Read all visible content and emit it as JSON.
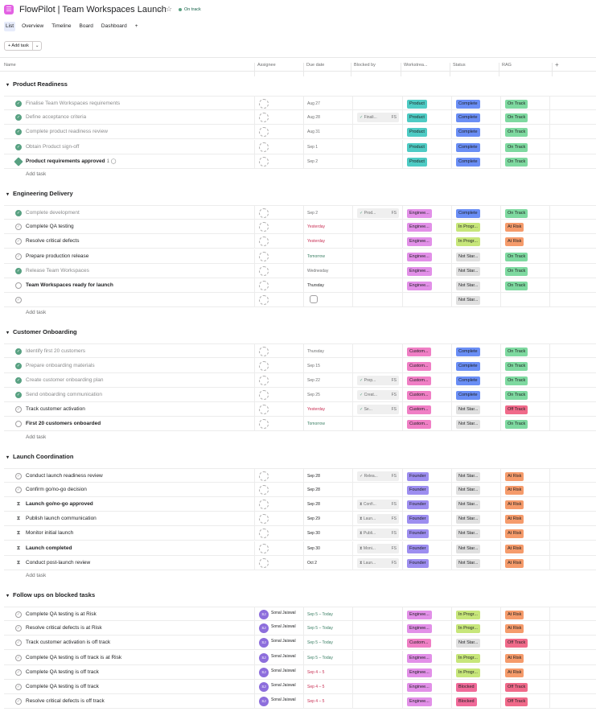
{
  "header": {
    "title": "FlowPilot | Team Workspaces Launch",
    "status": "On track"
  },
  "tabs": [
    "List",
    "Overview",
    "Timeline",
    "Board",
    "Dashboard",
    "+"
  ],
  "toolbar": {
    "add_task": "+ Add task",
    "caret": "⌄"
  },
  "columns": [
    "Name",
    "Assignee",
    "Due date",
    "Blocked by",
    "Workstrea...",
    "Status",
    "RAG",
    "+"
  ],
  "colors": {
    "Product": "#4ecbc4",
    "Engineering": "#e290e8",
    "Customer": "#f07fc5",
    "Founder": "#9d8ef0",
    "Complete": "#6a8ef5",
    "In Progress": "#c7e67a",
    "Not Started": "#e0e0e0",
    "Blocked": "#f06a99",
    "On Track": "#7ed9a0",
    "At Risk": "#f59b6b",
    "Off Track": "#f06a8a"
  },
  "add_task_label": "Add task",
  "sections": [
    {
      "title": "Product Readiness",
      "rows": [
        {
          "name": "Finalise Team Workspaces requirements",
          "check": "done",
          "due": "Aug 27",
          "due_style": "",
          "blocked": "",
          "ws": "Product",
          "ws_color": "Product",
          "status": "Complete",
          "rag": "On Track"
        },
        {
          "name": "Define acceptance criteria",
          "check": "done",
          "due": "Aug 28",
          "due_style": "",
          "blocked": "Finali...",
          "ws": "Product",
          "ws_color": "Product",
          "status": "Complete",
          "rag": "On Track"
        },
        {
          "name": "Complete product readiness review",
          "check": "done",
          "due": "Aug 31",
          "due_style": "",
          "blocked": "",
          "ws": "Product",
          "ws_color": "Product",
          "status": "Complete",
          "rag": "On Track"
        },
        {
          "name": "Obtain Product sign-off",
          "check": "done",
          "due": "Sep 1",
          "due_style": "",
          "blocked": "",
          "ws": "Product",
          "ws_color": "Product",
          "status": "Complete",
          "rag": "On Track"
        },
        {
          "name": "Product requirements approved",
          "check": "diamond",
          "bold": true,
          "done": false,
          "comments": "1",
          "due": "Sep 2",
          "due_style": "",
          "blocked": "",
          "ws": "Product",
          "ws_color": "Product",
          "status": "Complete",
          "rag": "On Track"
        }
      ]
    },
    {
      "title": "Engineering Delivery",
      "rows": [
        {
          "name": "Complete development",
          "check": "done",
          "due": "Sep 2",
          "due_style": "",
          "blocked": "Prod...",
          "ws": "Enginee...",
          "ws_color": "Engineering",
          "status": "Complete",
          "rag": "On Track"
        },
        {
          "name": "Complete QA testing",
          "check": "open",
          "due": "Yesterday",
          "due_style": "red",
          "blocked": "",
          "ws": "Enginee...",
          "ws_color": "Engineering",
          "status": "In Progr...",
          "status_color": "In Progress",
          "rag": "At Risk"
        },
        {
          "name": "Resolve critical defects",
          "check": "open",
          "due": "Yesterday",
          "due_style": "red",
          "blocked": "",
          "ws": "Enginee...",
          "ws_color": "Engineering",
          "status": "In Progr...",
          "status_color": "In Progress",
          "rag": "At Risk"
        },
        {
          "name": "Prepare production release",
          "check": "open",
          "due": "Tomorrow",
          "due_style": "green",
          "blocked": "",
          "ws": "Enginee...",
          "ws_color": "Engineering",
          "status": "Not Star...",
          "status_color": "Not Started",
          "rag": "On Track"
        },
        {
          "name": "Release Team Workspaces",
          "check": "done",
          "due": "Wednesday",
          "due_style": "",
          "blocked": "",
          "ws": "Enginee...",
          "ws_color": "Engineering",
          "status": "Not Star...",
          "status_color": "Not Started",
          "rag": "On Track"
        },
        {
          "name": "Team Workspaces ready for launch",
          "check": "diamond-open",
          "bold": true,
          "due": "Thursday",
          "due_style": "dark",
          "blocked": "",
          "ws": "Enginee...",
          "ws_color": "Engineering",
          "status": "Not Star...",
          "status_color": "Not Started",
          "rag": "On Track"
        },
        {
          "name": "",
          "check": "open",
          "due": "",
          "cal": true,
          "blocked": "",
          "ws": "",
          "status": "Not Star...",
          "status_color": "Not Started",
          "rag": ""
        }
      ]
    },
    {
      "title": "Customer Onboarding",
      "rows": [
        {
          "name": "Identify first 20 customers",
          "check": "done",
          "due": "Thursday",
          "due_style": "",
          "blocked": "",
          "ws": "Custom...",
          "ws_color": "Customer",
          "status": "Complete",
          "rag": "On Track"
        },
        {
          "name": "Prepare onboarding materials",
          "check": "done",
          "due": "Sep 15",
          "due_style": "",
          "blocked": "",
          "ws": "Custom...",
          "ws_color": "Customer",
          "status": "Complete",
          "rag": "On Track"
        },
        {
          "name": "Create customer onboarding plan",
          "check": "done",
          "due": "Sep 22",
          "due_style": "",
          "blocked": "Prep...",
          "ws": "Custom...",
          "ws_color": "Customer",
          "status": "Complete",
          "rag": "On Track"
        },
        {
          "name": "Send onboarding communication",
          "check": "done",
          "due": "Sep 25",
          "due_style": "",
          "blocked": "Creat...",
          "ws": "Custom...",
          "ws_color": "Customer",
          "status": "Complete",
          "rag": "On Track"
        },
        {
          "name": "Track customer activation",
          "check": "open",
          "due": "Yesterday",
          "due_style": "red",
          "blocked": "Se...",
          "ws": "Custom...",
          "ws_color": "Customer",
          "status": "Not Star...",
          "status_color": "Not Started",
          "rag": "Off Track"
        },
        {
          "name": "First 20 customers onboarded",
          "check": "diamond-open",
          "bold": true,
          "due": "Tomorrow",
          "due_style": "green",
          "blocked": "",
          "ws": "Custom...",
          "ws_color": "Customer",
          "status": "Not Star...",
          "status_color": "Not Started",
          "rag": "On Track"
        }
      ]
    },
    {
      "title": "Launch Coordination",
      "rows": [
        {
          "name": "Conduct launch readiness review",
          "check": "open",
          "due": "Sep 28",
          "due_style": "dark",
          "blocked": "Relea...",
          "ws": "Founder",
          "ws_color": "Founder",
          "status": "Not Star...",
          "status_color": "Not Started",
          "rag": "At Risk"
        },
        {
          "name": "Confirm go/no-go decision",
          "check": "open",
          "due": "Sep 28",
          "due_style": "dark",
          "blocked": "",
          "ws": "Founder",
          "ws_color": "Founder",
          "status": "Not Star...",
          "status_color": "Not Started",
          "rag": "At Risk"
        },
        {
          "name": "Launch go/no-go approved",
          "check": "hour",
          "bold": true,
          "due": "Sep 28",
          "due_style": "dark",
          "blocked": "Confi...",
          "ws": "Founder",
          "ws_color": "Founder",
          "status": "Not Star...",
          "status_color": "Not Started",
          "rag": "At Risk"
        },
        {
          "name": "Publish launch communication",
          "check": "hour",
          "due": "Sep 29",
          "due_style": "dark",
          "blocked": "Laun...",
          "ws": "Founder",
          "ws_color": "Founder",
          "status": "Not Star...",
          "status_color": "Not Started",
          "rag": "At Risk"
        },
        {
          "name": "Monitor initial launch",
          "check": "hour",
          "due": "Sep 30",
          "due_style": "dark",
          "blocked": "Publi...",
          "ws": "Founder",
          "ws_color": "Founder",
          "status": "Not Star...",
          "status_color": "Not Started",
          "rag": "At Risk"
        },
        {
          "name": "Launch completed",
          "check": "hour",
          "bold": true,
          "due": "Sep 30",
          "due_style": "dark",
          "blocked": "Moni...",
          "ws": "Founder",
          "ws_color": "Founder",
          "status": "Not Star...",
          "status_color": "Not Started",
          "rag": "At Risk"
        },
        {
          "name": "Conduct post-launch review",
          "check": "hour",
          "due": "Oct 2",
          "due_style": "dark",
          "blocked": "Laun...",
          "ws": "Founder",
          "ws_color": "Founder",
          "status": "Not Star...",
          "status_color": "Not Started",
          "rag": "At Risk"
        }
      ]
    },
    {
      "title": "Follow ups on blocked tasks",
      "rows": [
        {
          "name": "Complete QA testing is at Risk",
          "check": "open",
          "user": "Sonal Jaiswal",
          "due": "Sep 5 – Today",
          "due_style": "green",
          "blocked": "",
          "ws": "Enginee...",
          "ws_color": "Engineering",
          "status": "In Progr...",
          "status_color": "In Progress",
          "rag": "At Risk"
        },
        {
          "name": "Resolve critical defects is at Risk",
          "check": "open",
          "user": "Sonal Jaiswal",
          "due": "Sep 5 – Today",
          "due_style": "green",
          "blocked": "",
          "ws": "Enginee...",
          "ws_color": "Engineering",
          "status": "In Progr...",
          "status_color": "In Progress",
          "rag": "At Risk"
        },
        {
          "name": "Track customer activation is off track",
          "check": "open",
          "user": "Sonal Jaiswal",
          "due": "Sep 5 – Today",
          "due_style": "green",
          "blocked": "",
          "ws": "Custom...",
          "ws_color": "Customer",
          "status": "Not Star...",
          "status_color": "Not Started",
          "rag": "Off Track"
        },
        {
          "name": "Complete QA testing is off track is at Risk",
          "check": "open",
          "user": "Sonal Jaiswal",
          "due": "Sep 5 – Today",
          "due_style": "green",
          "blocked": "",
          "ws": "Enginee...",
          "ws_color": "Engineering",
          "status": "In Progr...",
          "status_color": "In Progress",
          "rag": "At Risk"
        },
        {
          "name": "Complete QA testing is off track",
          "check": "open",
          "user": "Sonal Jaiswal",
          "due": "Sep 4 – 5",
          "due_style": "red",
          "blocked": "",
          "ws": "Enginee...",
          "ws_color": "Engineering",
          "status": "In Progr...",
          "status_color": "In Progress",
          "rag": "At Risk"
        },
        {
          "name": "Complete QA testing is off track",
          "check": "open",
          "user": "Sonal Jaiswal",
          "due": "Sep 4 – 5",
          "due_style": "red",
          "blocked": "",
          "ws": "Enginee...",
          "ws_color": "Engineering",
          "status": "Blocked",
          "status_color": "Blocked",
          "rag": "Off Track"
        },
        {
          "name": "Resolve critical defects is off track",
          "check": "open",
          "user": "Sonal Jaiswal",
          "due": "Sep 4 – 5",
          "due_style": "red",
          "blocked": "",
          "ws": "Enginee...",
          "ws_color": "Engineering",
          "status": "Blocked",
          "status_color": "Blocked",
          "rag": "Off Track"
        }
      ]
    }
  ]
}
